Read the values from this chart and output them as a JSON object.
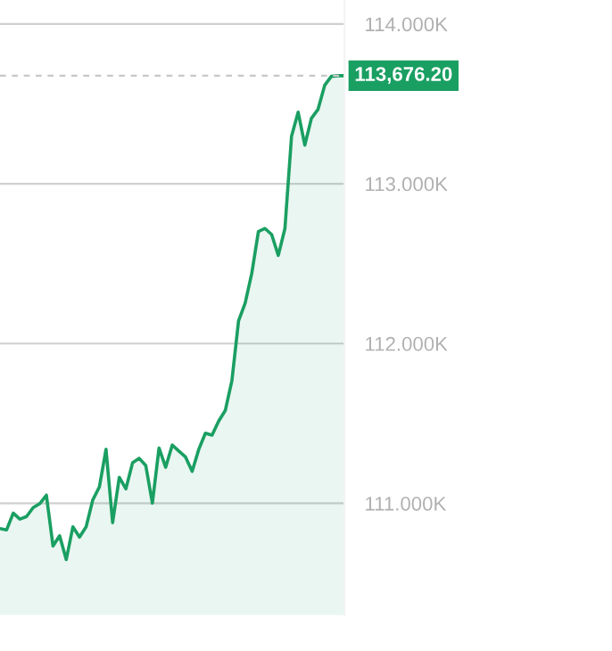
{
  "chart_data": {
    "type": "area",
    "categories": [
      null,
      null,
      null,
      null,
      null,
      null,
      null,
      null,
      null,
      null,
      null,
      null,
      null,
      null,
      null,
      null,
      null,
      null,
      null,
      null,
      null,
      null,
      null,
      null,
      null,
      null,
      null,
      null,
      null,
      null,
      null,
      null,
      null,
      null,
      null,
      null,
      null,
      null,
      null,
      null,
      null,
      null,
      null,
      null,
      null,
      null,
      null,
      null,
      null,
      null,
      null,
      null,
      null
    ],
    "series": [
      {
        "color": "#1a9f62",
        "values": [
          110842,
          110834,
          110939,
          110901,
          110917,
          110973,
          110998,
          111051,
          110733,
          110797,
          110648,
          110853,
          110789,
          110853,
          111021,
          111103,
          111338,
          110879,
          111163,
          111091,
          111253,
          111282,
          111237,
          111002,
          111346,
          111226,
          111365,
          111327,
          111290,
          111200,
          111338,
          111439,
          111427,
          111514,
          111581,
          111768,
          112141,
          112253,
          112440,
          112701,
          112720,
          112682,
          112552,
          112720,
          113298,
          113448,
          113242,
          113410,
          113466,
          113616,
          113672,
          113676.2,
          113676.2
        ]
      }
    ],
    "ylim": [
      110300,
      114150
    ],
    "yticks": [
      {
        "value": 111000,
        "label": "111.000K"
      },
      {
        "value": 112000,
        "label": "112.000K"
      },
      {
        "value": 113000,
        "label": "113.000K"
      },
      {
        "value": 114000,
        "label": "114.000K"
      }
    ],
    "grid": "y",
    "tick_labels": "y",
    "ref_lines": [
      {
        "axis": "y",
        "value": 113676.2,
        "label": "113,676.20",
        "color": "#c8c8c8",
        "line_style": "dashed"
      }
    ]
  }
}
